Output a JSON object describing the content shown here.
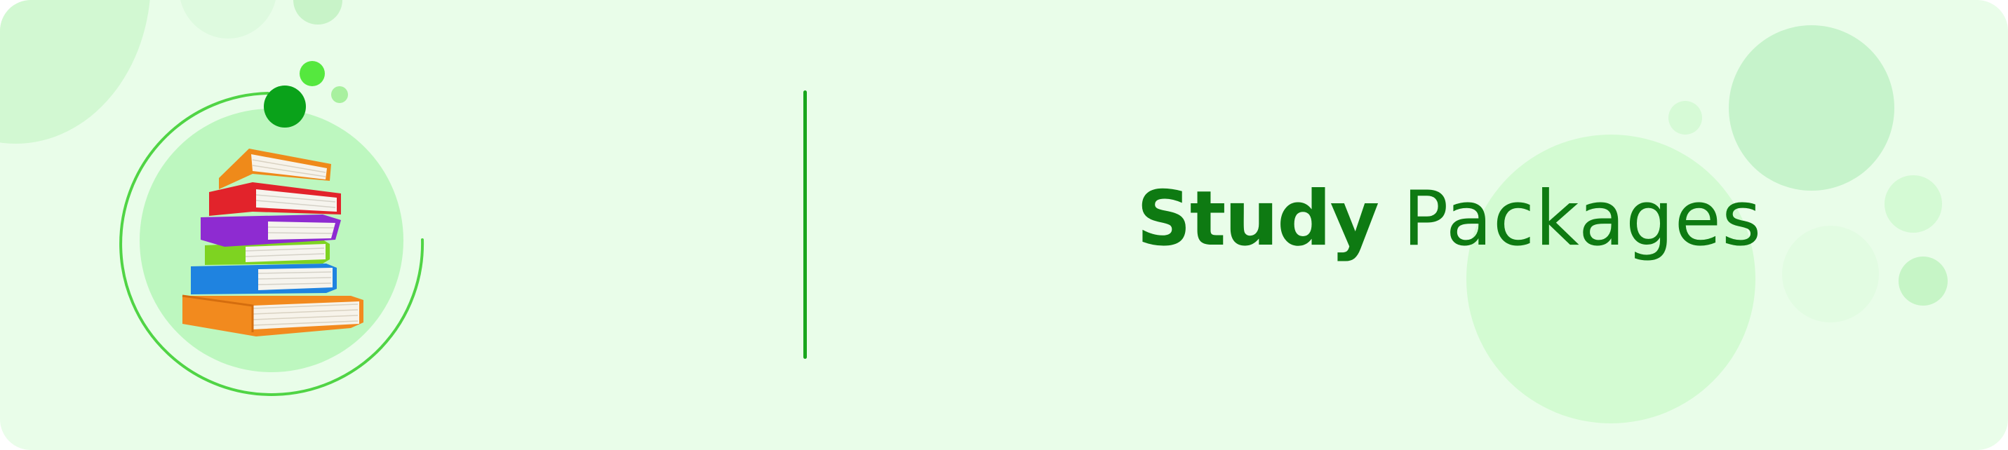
{
  "banner": {
    "title_bold": "Study",
    "title_regular": "Packages",
    "icon": "stack-of-books-icon"
  },
  "colors": {
    "background": "#e9fde9",
    "title": "#0e7a12",
    "divider": "#19a61d",
    "accent_ring": "#50d445",
    "dot_dark": "#0aa21a",
    "dot_light": "#55e83e"
  }
}
